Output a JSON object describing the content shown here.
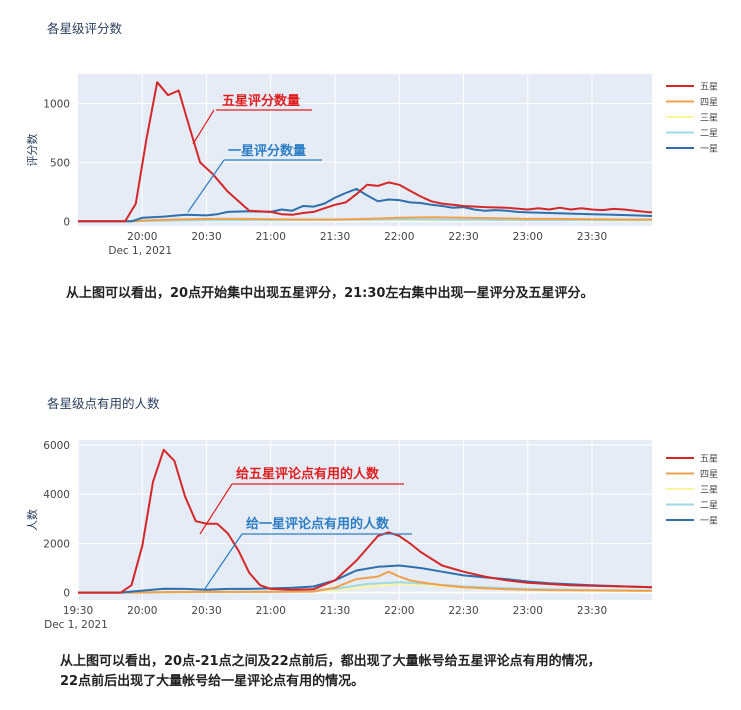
{
  "charts": [
    {
      "title": "各星级评分数",
      "ylabel": "评分数",
      "note": "从上图可以看出，20点开始集中出现五星评分，21:30左右集中出现一星评分及五星评分。",
      "annotations": [
        {
          "text": "五星评分数量",
          "color": "#e02020"
        },
        {
          "text": "一星评分数量",
          "color": "#2d7ec4"
        }
      ]
    },
    {
      "title": "各星级点有用的人数",
      "ylabel": "人数",
      "note_lines": [
        "从上图可以看出，20点-21点之间及22点前后，都出现了大量帐号给五星评论点有用的情况，",
        "22点前后出现了大量帐号给一星评论点有用的情况。"
      ],
      "annotations": [
        {
          "text": "给五星评论点有用的人数",
          "color": "#e02020"
        },
        {
          "text": "给一星评论点有用的人数",
          "color": "#2d7ec4"
        }
      ]
    }
  ],
  "chart_data": [
    {
      "type": "line",
      "title": "各星级评分数",
      "xlabel": "",
      "ylabel": "评分数",
      "x_ticks": [
        "20:00",
        "20:30",
        "21:00",
        "21:30",
        "22:00",
        "22:30",
        "23:00",
        "23:30"
      ],
      "x_tick_sub": "Dec 1, 2021",
      "xlim": [
        "19:30",
        "23:58"
      ],
      "ylim": [
        -40,
        1250
      ],
      "y_ticks": [
        0,
        500,
        1000
      ],
      "grid": true,
      "legend": "right",
      "series": [
        {
          "name": "五星",
          "color": "#d62728",
          "x": [
            "19:30",
            "19:52",
            "19:57",
            "20:02",
            "20:07",
            "20:12",
            "20:17",
            "20:22",
            "20:27",
            "20:33",
            "20:40",
            "20:50",
            "21:00",
            "21:05",
            "21:10",
            "21:15",
            "21:20",
            "21:25",
            "21:30",
            "21:35",
            "21:40",
            "21:45",
            "21:50",
            "21:55",
            "22:00",
            "22:05",
            "22:10",
            "22:15",
            "22:20",
            "22:25",
            "22:30",
            "22:40",
            "22:50",
            "23:00",
            "23:05",
            "23:10",
            "23:15",
            "23:20",
            "23:25",
            "23:30",
            "23:35",
            "23:40",
            "23:45",
            "23:50",
            "23:55",
            "23:58"
          ],
          "values": [
            0,
            0,
            150,
            700,
            1180,
            1070,
            1110,
            800,
            500,
            400,
            250,
            90,
            80,
            60,
            55,
            70,
            80,
            110,
            140,
            160,
            230,
            310,
            300,
            330,
            310,
            260,
            210,
            170,
            150,
            140,
            130,
            120,
            115,
            100,
            110,
            100,
            115,
            100,
            110,
            100,
            95,
            105,
            100,
            90,
            80,
            75
          ]
        },
        {
          "name": "四星",
          "color": "#f0a04b",
          "x": [
            "19:30",
            "19:55",
            "20:05",
            "20:15",
            "20:30",
            "20:45",
            "21:00",
            "21:15",
            "21:30",
            "21:45",
            "22:00",
            "22:15",
            "22:30",
            "22:45",
            "23:00",
            "23:15",
            "23:30",
            "23:45",
            "23:58"
          ],
          "values": [
            0,
            0,
            10,
            15,
            20,
            20,
            18,
            15,
            15,
            20,
            30,
            35,
            30,
            25,
            20,
            20,
            18,
            15,
            15
          ]
        },
        {
          "name": "三星",
          "color": "#fff59d",
          "x": [
            "19:30",
            "19:55",
            "20:10",
            "20:30",
            "21:00",
            "21:30",
            "22:00",
            "22:30",
            "23:00",
            "23:30",
            "23:58"
          ],
          "values": [
            0,
            0,
            5,
            8,
            8,
            10,
            12,
            10,
            8,
            8,
            6
          ]
        },
        {
          "name": "二星",
          "color": "#9fd8e6",
          "x": [
            "19:30",
            "19:55",
            "20:10",
            "20:30",
            "21:00",
            "21:30",
            "22:00",
            "22:30",
            "23:00",
            "23:30",
            "23:58"
          ],
          "values": [
            0,
            0,
            5,
            8,
            10,
            12,
            15,
            12,
            10,
            10,
            8
          ]
        },
        {
          "name": "一星",
          "color": "#2e6fad",
          "x": [
            "19:30",
            "19:55",
            "20:00",
            "20:10",
            "20:20",
            "20:30",
            "20:35",
            "20:40",
            "20:50",
            "21:00",
            "21:05",
            "21:10",
            "21:15",
            "21:20",
            "21:25",
            "21:30",
            "21:35",
            "21:40",
            "21:45",
            "21:50",
            "21:55",
            "22:00",
            "22:05",
            "22:10",
            "22:15",
            "22:20",
            "22:25",
            "22:30",
            "22:35",
            "22:40",
            "22:45",
            "22:50",
            "22:55",
            "23:00",
            "23:10",
            "23:20",
            "23:30",
            "23:40",
            "23:50",
            "23:58"
          ],
          "values": [
            0,
            0,
            30,
            40,
            55,
            50,
            60,
            80,
            85,
            80,
            100,
            90,
            130,
            125,
            150,
            200,
            240,
            275,
            220,
            170,
            185,
            180,
            160,
            155,
            140,
            130,
            115,
            120,
            100,
            90,
            95,
            90,
            80,
            75,
            70,
            65,
            60,
            55,
            50,
            45
          ]
        }
      ]
    },
    {
      "type": "line",
      "title": "各星级点有用的人数",
      "xlabel": "",
      "ylabel": "人数",
      "x_ticks": [
        "19:30",
        "20:00",
        "20:30",
        "21:00",
        "21:30",
        "22:00",
        "22:30",
        "23:00",
        "23:30"
      ],
      "x_tick_sub": "Dec 1, 2021",
      "xlim": [
        "19:30",
        "23:58"
      ],
      "ylim": [
        -300,
        6200
      ],
      "y_ticks": [
        0,
        2000,
        4000,
        6000
      ],
      "grid": true,
      "legend": "right",
      "series": [
        {
          "name": "五星",
          "color": "#d62728",
          "x": [
            "19:30",
            "19:50",
            "19:55",
            "20:00",
            "20:05",
            "20:10",
            "20:15",
            "20:20",
            "20:25",
            "20:30",
            "20:35",
            "20:40",
            "20:45",
            "20:50",
            "20:55",
            "21:00",
            "21:10",
            "21:20",
            "21:30",
            "21:40",
            "21:50",
            "21:55",
            "22:00",
            "22:05",
            "22:10",
            "22:20",
            "22:30",
            "22:40",
            "22:50",
            "23:00",
            "23:10",
            "23:20",
            "23:30",
            "23:40",
            "23:50",
            "23:58"
          ],
          "values": [
            0,
            0,
            300,
            1900,
            4500,
            5800,
            5350,
            3900,
            2900,
            2800,
            2800,
            2400,
            1700,
            800,
            300,
            150,
            120,
            140,
            500,
            1300,
            2300,
            2450,
            2300,
            2000,
            1650,
            1100,
            850,
            650,
            500,
            400,
            350,
            300,
            280,
            260,
            240,
            220
          ]
        },
        {
          "name": "四星",
          "color": "#f0a04b",
          "x": [
            "19:30",
            "19:55",
            "20:10",
            "20:30",
            "21:00",
            "21:20",
            "21:30",
            "21:40",
            "21:50",
            "21:55",
            "22:00",
            "22:05",
            "22:10",
            "22:20",
            "22:30",
            "22:40",
            "22:50",
            "23:00",
            "23:15",
            "23:30",
            "23:45",
            "23:58"
          ],
          "values": [
            0,
            0,
            20,
            30,
            30,
            40,
            200,
            550,
            650,
            850,
            650,
            500,
            420,
            300,
            220,
            180,
            140,
            120,
            100,
            90,
            80,
            70
          ]
        },
        {
          "name": "三星",
          "color": "#fff59d",
          "x": [
            "19:30",
            "19:55",
            "20:30",
            "21:00",
            "21:30",
            "21:45",
            "22:00",
            "22:15",
            "22:30",
            "23:00",
            "23:30",
            "23:58"
          ],
          "values": [
            0,
            0,
            20,
            30,
            100,
            250,
            350,
            300,
            200,
            120,
            80,
            60
          ]
        },
        {
          "name": "二星",
          "color": "#9fd8e6",
          "x": [
            "19:30",
            "19:55",
            "20:30",
            "21:00",
            "21:30",
            "21:45",
            "22:00",
            "22:15",
            "22:30",
            "23:00",
            "23:30",
            "23:58"
          ],
          "values": [
            0,
            0,
            30,
            40,
            150,
            350,
            420,
            350,
            250,
            150,
            100,
            80
          ]
        },
        {
          "name": "一星",
          "color": "#2e6fad",
          "x": [
            "19:30",
            "19:50",
            "20:00",
            "20:10",
            "20:20",
            "20:30",
            "20:40",
            "20:50",
            "21:00",
            "21:10",
            "21:20",
            "21:30",
            "21:40",
            "21:50",
            "22:00",
            "22:10",
            "22:20",
            "22:30",
            "22:40",
            "22:50",
            "23:00",
            "23:10",
            "23:20",
            "23:30",
            "23:40",
            "23:50",
            "23:58"
          ],
          "values": [
            0,
            0,
            80,
            160,
            150,
            120,
            150,
            150,
            170,
            200,
            250,
            500,
            900,
            1050,
            1100,
            1000,
            850,
            700,
            620,
            550,
            450,
            380,
            340,
            300,
            270,
            240,
            220
          ]
        }
      ]
    }
  ]
}
